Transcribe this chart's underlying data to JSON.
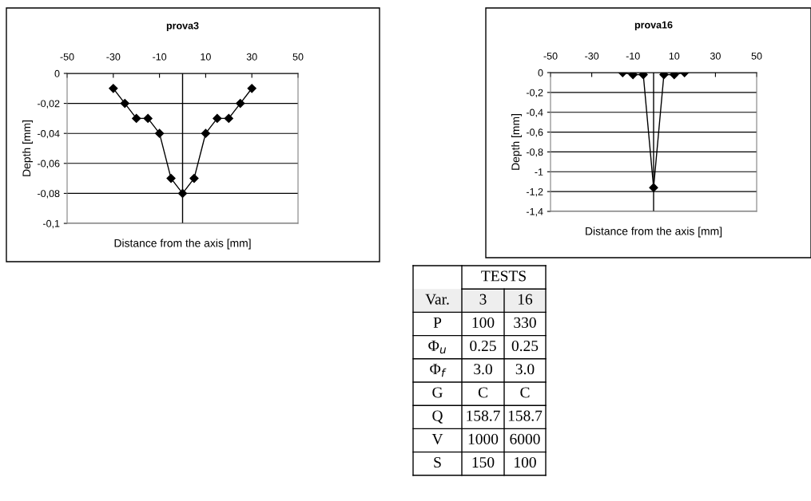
{
  "chart_data": [
    {
      "type": "line",
      "title": "prova3",
      "xlabel": "Distance from the axis [mm]",
      "ylabel": "Depth [mm]",
      "x": [
        -30,
        -25,
        -20,
        -15,
        -10,
        -5,
        0,
        5,
        10,
        15,
        20,
        25,
        30
      ],
      "series": [
        {
          "color": "#000000",
          "values": [
            -0.01,
            -0.02,
            -0.03,
            -0.03,
            -0.04,
            -0.07,
            -0.08,
            -0.07,
            -0.04,
            -0.03,
            -0.03,
            -0.02,
            -0.01
          ]
        }
      ],
      "xlim": [
        -50,
        50
      ],
      "xticks": [
        -50,
        -30,
        -10,
        10,
        30,
        50
      ],
      "ylim": [
        -0.1,
        0
      ],
      "yticks": [
        {
          "value": -0.1,
          "label": "-0,1"
        },
        {
          "value": -0.08,
          "label": "-0,08"
        },
        {
          "value": -0.06,
          "label": "-0,06"
        },
        {
          "value": -0.04,
          "label": "-0,04"
        },
        {
          "value": -0.02,
          "label": "-0,02"
        },
        0
      ],
      "grid": "y",
      "marker": "diamond",
      "line_style": "solid",
      "legend": false,
      "ref_lines": [
        {
          "axis": "x",
          "value": 0,
          "color": "#000000"
        }
      ]
    },
    {
      "type": "line",
      "title": "prova16",
      "xlabel": "Distance from the axis [mm]",
      "ylabel": "Depth [mm]",
      "x": [
        -15,
        -10,
        -5,
        0,
        5,
        10,
        15
      ],
      "series": [
        {
          "color": "#000000",
          "values": [
            0,
            -0.02,
            -0.02,
            -1.16,
            -0.02,
            -0.02,
            0
          ]
        }
      ],
      "xlim": [
        -50,
        50
      ],
      "xticks": [
        -50,
        -30,
        -10,
        10,
        30,
        50
      ],
      "ylim": [
        -1.4,
        0
      ],
      "yticks": [
        {
          "value": -1.4,
          "label": "-1,4"
        },
        {
          "value": -1.2,
          "label": "-1,2"
        },
        -1,
        {
          "value": -0.8,
          "label": "-0,8"
        },
        {
          "value": -0.6,
          "label": "-0,6"
        },
        {
          "value": -0.4,
          "label": "-0,4"
        },
        {
          "value": -0.2,
          "label": "-0,2"
        },
        0
      ],
      "grid": "y",
      "marker": "diamond",
      "line_style": "solid",
      "legend": false,
      "ref_lines": [
        {
          "axis": "x",
          "value": 0,
          "color": "#000000"
        }
      ]
    },
    {
      "type": "other",
      "title": "TESTS",
      "annotations": [
        "Var."
      ],
      "categories": [
        "3",
        "16"
      ],
      "y_categories": [
        "P",
        "Φ$_{u}$",
        "Φ$_{f}$",
        "G",
        "Q",
        "V",
        "S"
      ],
      "cell_labels": [
        [
          "100",
          "330"
        ],
        [
          "0.25",
          "0.25"
        ],
        [
          "3.0",
          "3.0"
        ],
        [
          "C",
          "C"
        ],
        [
          "158.7",
          "158.7"
        ],
        [
          "1000",
          "6000"
        ],
        [
          "150",
          "100"
        ]
      ]
    }
  ]
}
